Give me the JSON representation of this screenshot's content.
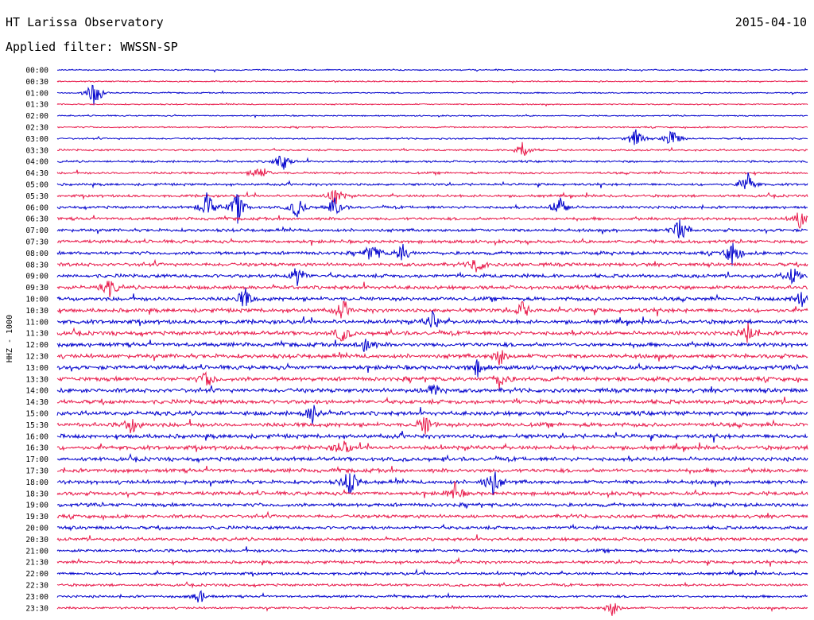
{
  "header": {
    "station": "HT Larissa Observatory",
    "date": "2015-04-10",
    "filter": "Applied filter: WWSSN-SP"
  },
  "chart_data": {
    "type": "line",
    "channel_label": "HHZ - 1000",
    "rows": [
      "00:00",
      "00:30",
      "01:00",
      "01:30",
      "02:00",
      "02:30",
      "03:00",
      "03:30",
      "04:00",
      "04:30",
      "05:00",
      "05:30",
      "06:00",
      "06:30",
      "07:00",
      "07:30",
      "08:00",
      "08:30",
      "09:00",
      "09:30",
      "10:00",
      "10:30",
      "11:00",
      "11:30",
      "12:00",
      "12:30",
      "13:00",
      "13:30",
      "14:00",
      "14:30",
      "15:00",
      "15:30",
      "16:00",
      "16:30",
      "17:00",
      "17:30",
      "18:00",
      "18:30",
      "19:00",
      "19:30",
      "20:00",
      "20:30",
      "21:00",
      "21:30",
      "22:00",
      "22:30",
      "23:00",
      "23:30"
    ],
    "row_colors": [
      "#0000cc",
      "#e8194a"
    ],
    "events": [
      {
        "row": 2,
        "pos": 0.05,
        "amp": 2.2
      },
      {
        "row": 6,
        "pos": 0.77,
        "amp": 1.4
      },
      {
        "row": 6,
        "pos": 0.82,
        "amp": 1.4
      },
      {
        "row": 7,
        "pos": 0.62,
        "amp": 1.3
      },
      {
        "row": 8,
        "pos": 0.3,
        "amp": 1.3
      },
      {
        "row": 9,
        "pos": 0.27,
        "amp": 1.2
      },
      {
        "row": 10,
        "pos": 0.92,
        "amp": 1.6
      },
      {
        "row": 11,
        "pos": 0.37,
        "amp": 1.3
      },
      {
        "row": 12,
        "pos": 0.2,
        "amp": 2.0
      },
      {
        "row": 12,
        "pos": 0.24,
        "amp": 2.2
      },
      {
        "row": 12,
        "pos": 0.32,
        "amp": 1.5
      },
      {
        "row": 12,
        "pos": 0.37,
        "amp": 1.4
      },
      {
        "row": 12,
        "pos": 0.67,
        "amp": 1.6
      },
      {
        "row": 13,
        "pos": 0.99,
        "amp": 1.2
      },
      {
        "row": 14,
        "pos": 0.83,
        "amp": 1.8
      },
      {
        "row": 16,
        "pos": 0.42,
        "amp": 1.5
      },
      {
        "row": 16,
        "pos": 0.46,
        "amp": 1.3
      },
      {
        "row": 16,
        "pos": 0.9,
        "amp": 1.8
      },
      {
        "row": 17,
        "pos": 0.56,
        "amp": 1.2
      },
      {
        "row": 18,
        "pos": 0.32,
        "amp": 1.4
      },
      {
        "row": 18,
        "pos": 0.98,
        "amp": 1.3
      },
      {
        "row": 19,
        "pos": 0.07,
        "amp": 1.2
      },
      {
        "row": 20,
        "pos": 0.25,
        "amp": 1.5
      },
      {
        "row": 20,
        "pos": 0.99,
        "amp": 1.3
      },
      {
        "row": 21,
        "pos": 0.38,
        "amp": 1.1
      },
      {
        "row": 21,
        "pos": 0.62,
        "amp": 1.1
      },
      {
        "row": 22,
        "pos": 0.5,
        "amp": 1.2
      },
      {
        "row": 23,
        "pos": 0.38,
        "amp": 1.2
      },
      {
        "row": 23,
        "pos": 0.92,
        "amp": 1.3
      },
      {
        "row": 24,
        "pos": 0.41,
        "amp": 1.2
      },
      {
        "row": 25,
        "pos": 0.59,
        "amp": 1.1
      },
      {
        "row": 26,
        "pos": 0.56,
        "amp": 1.1
      },
      {
        "row": 27,
        "pos": 0.59,
        "amp": 1.2
      },
      {
        "row": 27,
        "pos": 0.2,
        "amp": 1.1
      },
      {
        "row": 28,
        "pos": 0.5,
        "amp": 1.2
      },
      {
        "row": 30,
        "pos": 0.34,
        "amp": 1.3
      },
      {
        "row": 31,
        "pos": 0.1,
        "amp": 1.3
      },
      {
        "row": 31,
        "pos": 0.49,
        "amp": 1.3
      },
      {
        "row": 33,
        "pos": 0.38,
        "amp": 1.3
      },
      {
        "row": 36,
        "pos": 0.39,
        "amp": 1.9
      },
      {
        "row": 36,
        "pos": 0.58,
        "amp": 2.2
      },
      {
        "row": 37,
        "pos": 0.53,
        "amp": 1.3
      },
      {
        "row": 46,
        "pos": 0.19,
        "amp": 1.0
      },
      {
        "row": 47,
        "pos": 0.74,
        "amp": 1.0
      }
    ]
  }
}
